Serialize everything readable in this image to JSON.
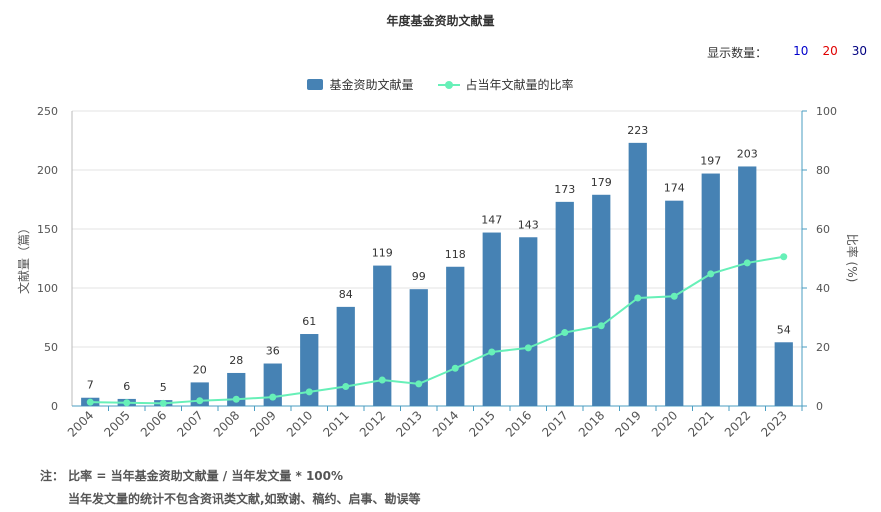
{
  "chart_data": {
    "type": "bar",
    "title": "年度基金资助文献量",
    "categories": [
      "2004",
      "2005",
      "2006",
      "2007",
      "2008",
      "2009",
      "2010",
      "2011",
      "2012",
      "2013",
      "2014",
      "2015",
      "2016",
      "2017",
      "2018",
      "2019",
      "2020",
      "2021",
      "2022",
      "2023"
    ],
    "series": [
      {
        "name": "基金资助文献量",
        "type": "bar",
        "axis": "left",
        "values": [
          7,
          6,
          5,
          20,
          28,
          36,
          61,
          84,
          119,
          99,
          118,
          147,
          143,
          173,
          179,
          223,
          174,
          197,
          203,
          54
        ]
      },
      {
        "name": "占当年文献量的比率",
        "type": "line",
        "axis": "right",
        "values": [
          1.3,
          1.1,
          0.9,
          1.8,
          2.3,
          3.0,
          4.8,
          6.6,
          8.8,
          7.5,
          12.8,
          18.3,
          19.7,
          24.9,
          27.2,
          36.6,
          37.2,
          44.8,
          48.5,
          50.6
        ]
      }
    ],
    "ylabel": "文献量（篇）",
    "ylabel_right": "比率 (%)",
    "ylim": [
      0,
      250
    ],
    "yticks": [
      0,
      50,
      100,
      150,
      200,
      250
    ],
    "ylim_right": [
      0,
      100
    ],
    "yticks_right": [
      0,
      20,
      40,
      60,
      80,
      100
    ],
    "colors": {
      "bar": "#4682b4",
      "line": "#67f0b8",
      "axis_right": "#4a9ec2"
    },
    "legend_position": "top-center",
    "grid": true
  },
  "display_count": {
    "label": "显示数量：",
    "options": [
      {
        "value": "10",
        "color": "#0000cc"
      },
      {
        "value": "20",
        "color": "#e00000"
      },
      {
        "value": "30",
        "color": "#000080"
      }
    ]
  },
  "notes": {
    "line1": "注：  比率 = 当年基金资助文献量 / 当年发文量 * 100%",
    "line2": "当年发文量的统计不包含资讯类文献,如致谢、稿约、启事、勘误等"
  }
}
